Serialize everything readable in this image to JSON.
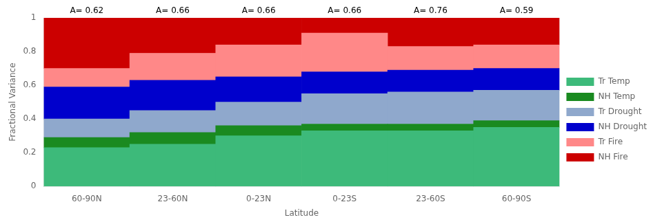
{
  "chart_data": {
    "type": "bar",
    "stacked": true,
    "categories": [
      "60-90N",
      "23-60N",
      "0-23N",
      "0-23S",
      "23-60S",
      "60-90S"
    ],
    "series": [
      {
        "name": "Tr Temp",
        "color": "#3DBA7A",
        "values": [
          0.23,
          0.25,
          0.3,
          0.33,
          0.33,
          0.35
        ]
      },
      {
        "name": "NH Temp",
        "color": "#1A8A20",
        "values": [
          0.06,
          0.07,
          0.06,
          0.04,
          0.04,
          0.04
        ]
      },
      {
        "name": "Tr Drought",
        "color": "#8FA8CC",
        "values": [
          0.11,
          0.13,
          0.14,
          0.18,
          0.19,
          0.18
        ]
      },
      {
        "name": "NH Drought",
        "color": "#0000CC",
        "values": [
          0.19,
          0.18,
          0.15,
          0.13,
          0.13,
          0.13
        ]
      },
      {
        "name": "Tr Fire",
        "color": "#FF8888",
        "values": [
          0.11,
          0.16,
          0.19,
          0.23,
          0.14,
          0.14
        ]
      },
      {
        "name": "NH Fire",
        "color": "#CC0000",
        "values": [
          0.3,
          0.21,
          0.16,
          0.09,
          0.17,
          0.16
        ]
      }
    ],
    "annotations": [
      "A= 0.62",
      "A= 0.66",
      "A= 0.66",
      "A= 0.66",
      "A= 0.76",
      "A= 0.59"
    ],
    "xlabel": "Latitude",
    "ylabel": "Fractional Variance",
    "ylim": [
      0,
      1
    ],
    "yticks": [
      0,
      0.2,
      0.4,
      0.6,
      0.8,
      1
    ],
    "grid": false,
    "legend": "right"
  }
}
